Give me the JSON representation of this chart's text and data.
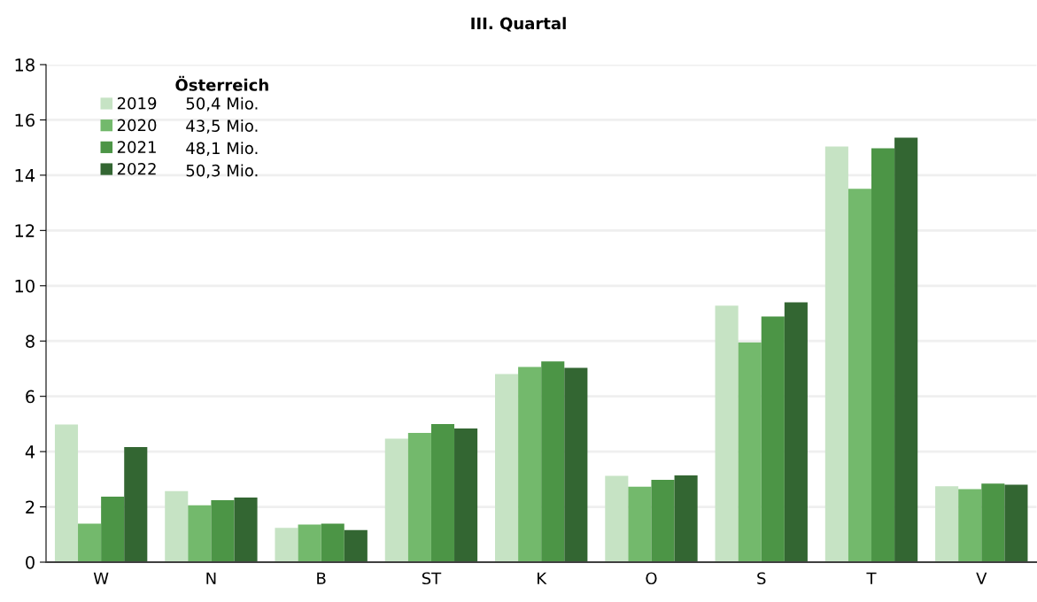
{
  "chart_data": {
    "type": "bar",
    "title": "III. Quartal",
    "categories": [
      "W",
      "N",
      "B",
      "ST",
      "K",
      "O",
      "S",
      "T",
      "V"
    ],
    "series": [
      {
        "name": "2019",
        "color": "#c6e3c4",
        "values": [
          4.98,
          2.57,
          1.24,
          4.47,
          6.81,
          3.12,
          9.28,
          15.04,
          2.75
        ]
      },
      {
        "name": "2020",
        "color": "#73b96c",
        "values": [
          1.39,
          2.06,
          1.36,
          4.68,
          7.06,
          2.73,
          7.95,
          13.51,
          2.64
        ]
      },
      {
        "name": "2021",
        "color": "#4c9546",
        "values": [
          2.37,
          2.24,
          1.39,
          5.0,
          7.26,
          2.98,
          8.89,
          14.97,
          2.84
        ]
      },
      {
        "name": "2022",
        "color": "#336632",
        "values": [
          4.16,
          2.34,
          1.16,
          4.84,
          7.03,
          3.14,
          9.4,
          15.36,
          2.8
        ]
      }
    ],
    "ylim": [
      0,
      18
    ],
    "yticks": [
      0,
      2,
      4,
      6,
      8,
      10,
      12,
      14,
      16,
      18
    ],
    "grid": "y",
    "legend": "top left",
    "legend_title": "Österreich",
    "annotations": [
      "50,4 Mio.",
      "43,5 Mio.",
      "48,1 Mio.",
      "50,3 Mio."
    ]
  }
}
